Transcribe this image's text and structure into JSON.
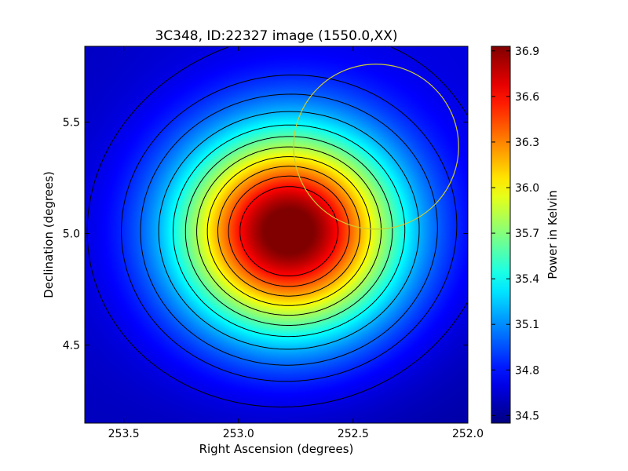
{
  "chart_data": {
    "type": "heatmap",
    "title": "3C348, ID:22327 image (1550.0,XX)",
    "xlabel": "Right Ascension (degrees)",
    "ylabel": "Declination (degrees)",
    "colorbar_label": "Power in Kelvin",
    "xlim": [
      253.67,
      252.0
    ],
    "ylim": [
      4.15,
      5.84
    ],
    "x_ticks": [
      {
        "value": 253.5,
        "label": "253.5"
      },
      {
        "value": 253.0,
        "label": "253.0"
      },
      {
        "value": 252.5,
        "label": "252.5"
      },
      {
        "value": 252.0,
        "label": "252.0"
      }
    ],
    "y_ticks": [
      {
        "value": 4.5,
        "label": "4.5"
      },
      {
        "value": 5.0,
        "label": "5.0"
      },
      {
        "value": 5.5,
        "label": "5.5"
      }
    ],
    "colorbar_range": [
      34.45,
      36.93
    ],
    "colorbar_ticks": [
      {
        "value": 34.5,
        "label": "34.5"
      },
      {
        "value": 34.8,
        "label": "34.8"
      },
      {
        "value": 35.1,
        "label": "35.1"
      },
      {
        "value": 35.4,
        "label": "35.4"
      },
      {
        "value": 35.7,
        "label": "35.7"
      },
      {
        "value": 36.0,
        "label": "36.0"
      },
      {
        "value": 36.3,
        "label": "36.3"
      },
      {
        "value": 36.6,
        "label": "36.6"
      },
      {
        "value": 36.9,
        "label": "36.9"
      }
    ],
    "colormap": "jet",
    "source_peak": {
      "ra": 252.78,
      "dec": 5.01,
      "value": 36.93
    },
    "background_value": 34.6,
    "contour_levels": [
      34.7,
      34.85,
      35.0,
      35.2,
      35.4,
      35.6,
      35.8,
      36.0,
      36.2,
      36.4,
      36.6
    ],
    "circle_marker": {
      "ra": 252.4,
      "dec": 5.39,
      "radius_deg": 0.37,
      "color": "#cccc33"
    }
  }
}
